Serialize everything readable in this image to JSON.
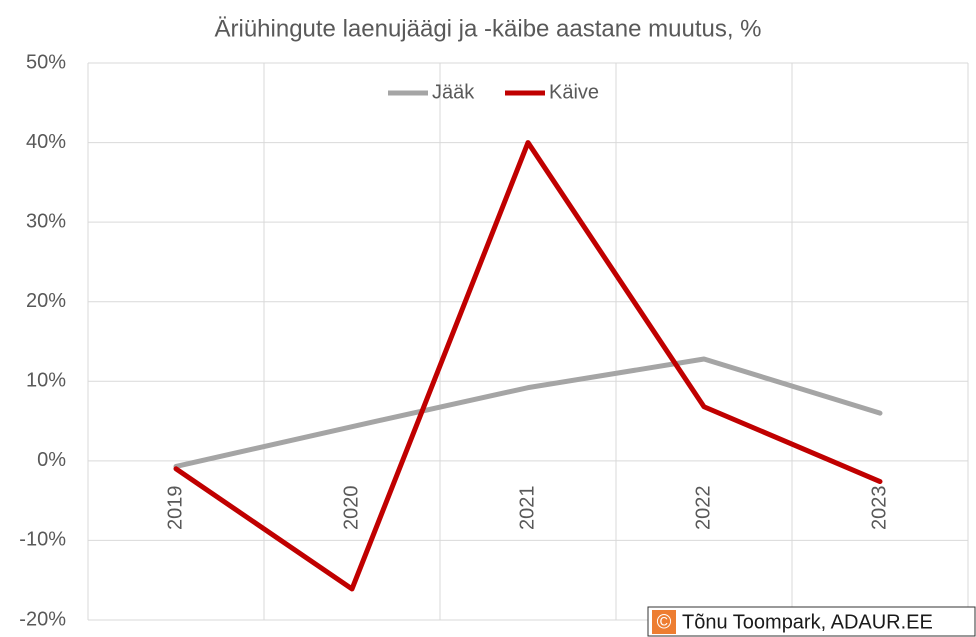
{
  "chart_data": {
    "type": "line",
    "title": "Äriühingute laenujäägi ja -käibe aastane muutus, %",
    "categories": [
      "2019",
      "2020",
      "2021",
      "2022",
      "2023"
    ],
    "series": [
      {
        "name": "Jääk",
        "color": "#a5a5a5",
        "values": [
          -0.7,
          4.3,
          9.2,
          12.8,
          6.0
        ]
      },
      {
        "name": "Käive",
        "color": "#c00000",
        "values": [
          -1.0,
          -16.1,
          40.0,
          6.8,
          -2.6
        ]
      }
    ],
    "ylim": [
      -20,
      50
    ],
    "yticks": [
      {
        "value": -20,
        "label": "-20%"
      },
      {
        "value": -10,
        "label": "-10%"
      },
      {
        "value": 0,
        "label": "0%"
      },
      {
        "value": 10,
        "label": "10%"
      },
      {
        "value": 20,
        "label": "20%"
      },
      {
        "value": 30,
        "label": "30%"
      },
      {
        "value": 40,
        "label": "40%"
      },
      {
        "value": 50,
        "label": "50%"
      }
    ],
    "grid": true,
    "legend": "top",
    "watermark_symbol": "©",
    "watermark": "Tõnu Toompark, ADAUR.EE"
  }
}
